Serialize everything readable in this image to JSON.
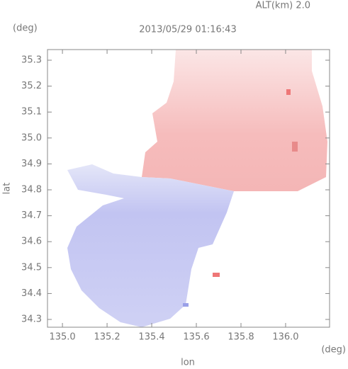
{
  "chart_data": {
    "type": "image",
    "title": "2013/05/29 01:16:43",
    "subtitle": "ALT(km) 2.0",
    "y_unit": "(deg)",
    "x_unit": "(deg)",
    "xlabel": "lon",
    "ylabel": "lat",
    "xlim": [
      134.933,
      136.197
    ],
    "ylim": [
      34.27,
      35.341
    ],
    "xticks": [
      {
        "value": 135.0,
        "label": "135.0"
      },
      135.2,
      135.4,
      135.6,
      135.8,
      {
        "value": 136.0,
        "label": "136.0"
      }
    ],
    "yticks": [
      34.3,
      34.4,
      34.5,
      34.6,
      34.7,
      34.8,
      34.9,
      {
        "value": 35.0,
        "label": "35.0"
      },
      35.1,
      35.2,
      35.3
    ]
  }
}
